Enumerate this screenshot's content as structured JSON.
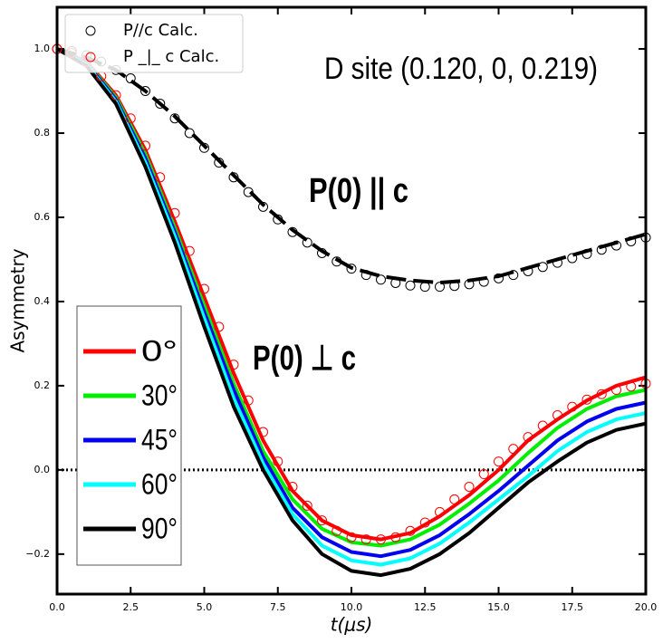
{
  "chart_data": {
    "type": "line",
    "xlabel": "t(μs)",
    "ylabel": "Asymmetry",
    "xlim": [
      0,
      20
    ],
    "ylim": [
      -0.295,
      1.099
    ],
    "xticks": [
      {
        "value": 0,
        "label": "0.0"
      },
      {
        "value": 2.5,
        "label": "2.5"
      },
      {
        "value": 5,
        "label": "5.0"
      },
      {
        "value": 7.5,
        "label": "7.5"
      },
      {
        "value": 10,
        "label": "10.0"
      },
      {
        "value": 12.5,
        "label": "12.5"
      },
      {
        "value": 15,
        "label": "15.0"
      },
      {
        "value": 17.5,
        "label": "17.5"
      },
      {
        "value": 20,
        "label": "20.0"
      }
    ],
    "yticks": [
      {
        "value": -0.2,
        "label": "−0.2"
      },
      {
        "value": 0,
        "label": "0.0"
      },
      0.2,
      0.4,
      0.6,
      0.8,
      {
        "value": 1,
        "label": "1.0"
      }
    ],
    "hline": 0,
    "annotations": [
      "D site (0.120, 0, 0.219)",
      "P(0) || c",
      "P(0) ⊥ c"
    ],
    "series": [
      {
        "name": "0°",
        "color": "#ff0000",
        "style": "solid",
        "x": [
          0,
          1,
          2,
          3,
          4,
          5,
          6,
          7,
          8,
          9,
          10,
          11,
          12,
          13,
          14,
          15,
          16,
          17,
          18,
          19,
          20
        ],
        "values": [
          1.0,
          0.97,
          0.89,
          0.76,
          0.59,
          0.41,
          0.23,
          0.07,
          -0.05,
          -0.12,
          -0.155,
          -0.165,
          -0.15,
          -0.11,
          -0.06,
          0.0,
          0.07,
          0.12,
          0.165,
          0.2,
          0.22
        ]
      },
      {
        "name": "30°",
        "color": "#00ee00",
        "style": "solid",
        "x": [
          0,
          1,
          2,
          3,
          4,
          5,
          6,
          7,
          8,
          9,
          10,
          11,
          12,
          13,
          14,
          15,
          16,
          17,
          18,
          19,
          20
        ],
        "values": [
          1.0,
          0.968,
          0.885,
          0.75,
          0.575,
          0.39,
          0.205,
          0.045,
          -0.07,
          -0.14,
          -0.172,
          -0.18,
          -0.165,
          -0.13,
          -0.08,
          -0.025,
          0.04,
          0.1,
          0.145,
          0.175,
          0.19
        ]
      },
      {
        "name": "45°",
        "color": "#0000ee",
        "style": "solid",
        "x": [
          0,
          1,
          2,
          3,
          4,
          5,
          6,
          7,
          8,
          9,
          10,
          11,
          12,
          13,
          14,
          15,
          16,
          17,
          18,
          19,
          20
        ],
        "values": [
          1.0,
          0.966,
          0.88,
          0.74,
          0.565,
          0.375,
          0.19,
          0.03,
          -0.09,
          -0.16,
          -0.195,
          -0.205,
          -0.19,
          -0.155,
          -0.105,
          -0.05,
          0.01,
          0.07,
          0.115,
          0.145,
          0.16
        ]
      },
      {
        "name": "60°",
        "color": "#00ffff",
        "style": "solid",
        "x": [
          0,
          1,
          2,
          3,
          4,
          5,
          6,
          7,
          8,
          9,
          10,
          11,
          12,
          13,
          14,
          15,
          16,
          17,
          18,
          19,
          20
        ],
        "values": [
          1.0,
          0.963,
          0.875,
          0.73,
          0.555,
          0.36,
          0.17,
          0.015,
          -0.105,
          -0.18,
          -0.215,
          -0.225,
          -0.21,
          -0.175,
          -0.125,
          -0.07,
          -0.015,
          0.045,
          0.09,
          0.12,
          0.135
        ]
      },
      {
        "name": "90°",
        "color": "#000000",
        "style": "solid",
        "x": [
          0,
          1,
          2,
          3,
          4,
          5,
          6,
          7,
          8,
          9,
          10,
          11,
          12,
          13,
          14,
          15,
          16,
          17,
          18,
          19,
          20
        ],
        "values": [
          1.0,
          0.96,
          0.87,
          0.72,
          0.54,
          0.34,
          0.15,
          0.0,
          -0.12,
          -0.2,
          -0.24,
          -0.25,
          -0.235,
          -0.2,
          -0.15,
          -0.09,
          -0.03,
          0.02,
          0.065,
          0.095,
          0.11
        ]
      },
      {
        "color": "#000000",
        "style": "dashed",
        "x": [
          0,
          1,
          2,
          3,
          4,
          5,
          6,
          7,
          8,
          9,
          10,
          11,
          12,
          13,
          14,
          15,
          16,
          17,
          18,
          19,
          20
        ],
        "values": [
          1.0,
          0.98,
          0.95,
          0.9,
          0.84,
          0.77,
          0.7,
          0.63,
          0.57,
          0.52,
          0.48,
          0.46,
          0.45,
          0.445,
          0.45,
          0.46,
          0.48,
          0.5,
          0.52,
          0.54,
          0.56
        ]
      },
      {
        "name": "P//c Calc.",
        "color": "#000000",
        "style": "circle",
        "x": [
          0,
          0.5,
          1,
          1.5,
          2,
          2.5,
          3,
          3.5,
          4,
          4.5,
          5,
          5.5,
          6,
          6.5,
          7,
          7.5,
          8,
          8.5,
          9,
          9.5,
          10,
          10.5,
          11,
          11.5,
          12,
          12.5,
          13,
          13.5,
          14,
          14.5,
          15,
          15.5,
          16,
          16.5,
          17,
          17.5,
          18,
          18.5,
          19,
          19.5,
          20
        ],
        "values": [
          1.0,
          0.995,
          0.985,
          0.97,
          0.95,
          0.93,
          0.9,
          0.87,
          0.835,
          0.8,
          0.765,
          0.73,
          0.695,
          0.66,
          0.625,
          0.595,
          0.565,
          0.54,
          0.515,
          0.495,
          0.478,
          0.463,
          0.452,
          0.444,
          0.438,
          0.435,
          0.435,
          0.437,
          0.441,
          0.447,
          0.455,
          0.463,
          0.472,
          0.482,
          0.492,
          0.503,
          0.513,
          0.523,
          0.533,
          0.543,
          0.552
        ]
      },
      {
        "name": "P _|_ c Calc.",
        "color": "#ff0000",
        "style": "circle",
        "x": [
          0,
          0.5,
          1,
          1.5,
          2,
          2.5,
          3,
          3.5,
          4,
          4.5,
          5,
          5.5,
          6,
          6.5,
          7,
          7.5,
          8,
          8.5,
          9,
          9.5,
          10,
          10.5,
          11,
          11.5,
          12,
          12.5,
          13,
          13.5,
          14,
          14.5,
          15,
          15.5,
          16,
          16.5,
          17,
          17.5,
          18,
          18.5,
          19,
          19.5,
          20
        ],
        "values": [
          1.0,
          0.99,
          0.97,
          0.935,
          0.89,
          0.835,
          0.77,
          0.695,
          0.61,
          0.52,
          0.43,
          0.34,
          0.25,
          0.165,
          0.09,
          0.02,
          -0.04,
          -0.085,
          -0.12,
          -0.145,
          -0.16,
          -0.165,
          -0.165,
          -0.16,
          -0.145,
          -0.125,
          -0.1,
          -0.07,
          -0.04,
          -0.01,
          0.02,
          0.05,
          0.078,
          0.105,
          0.13,
          0.15,
          0.167,
          0.18,
          0.19,
          0.198,
          0.205
        ]
      }
    ]
  }
}
